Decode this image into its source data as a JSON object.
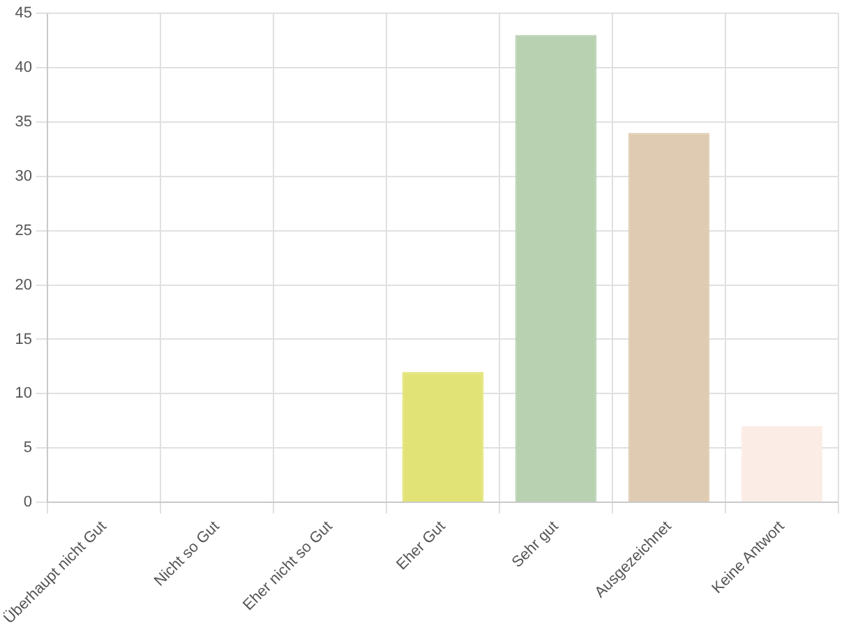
{
  "chart_data": {
    "type": "bar",
    "categories": [
      "Überhaupt nicht Gut",
      "Nicht so Gut",
      "Eher nicht so Gut",
      "Eher Gut",
      "Sehr gut",
      "Ausgezeichnet",
      "Keine Antwort"
    ],
    "values": [
      0,
      0,
      0,
      12,
      43,
      34,
      7
    ],
    "colors": [
      "#e0e0e0",
      "#e0e0e0",
      "#e0e0e0",
      "#e2e377",
      "#b7d1b1",
      "#dfcbb1",
      "#fbede6"
    ],
    "ylim": [
      0,
      45
    ],
    "yticks": [
      0,
      5,
      10,
      15,
      20,
      25,
      30,
      35,
      40,
      45
    ],
    "grid": true,
    "legend": false
  }
}
